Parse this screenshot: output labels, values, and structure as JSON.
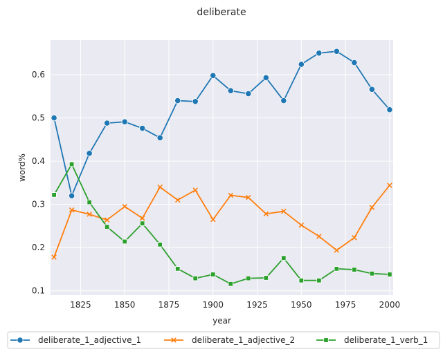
{
  "chart_data": {
    "type": "line",
    "title": "deliberate",
    "xlabel": "year",
    "ylabel": "word%",
    "xlim": [
      1808,
      2002
    ],
    "ylim": [
      0.09,
      0.68
    ],
    "xticks": [
      1825,
      1850,
      1875,
      1900,
      1925,
      1950,
      1975,
      2000
    ],
    "yticks": [
      0.1,
      0.2,
      0.3,
      0.4,
      0.5,
      0.6
    ],
    "ytick_labels": [
      "0.1",
      "0.2",
      "0.3",
      "0.4",
      "0.5",
      "0.6"
    ],
    "grid": true,
    "legend_position": "bottom",
    "x": [
      1810,
      1820,
      1830,
      1840,
      1850,
      1860,
      1870,
      1880,
      1890,
      1900,
      1910,
      1920,
      1930,
      1940,
      1950,
      1960,
      1970,
      1980,
      1990,
      2000
    ],
    "series": [
      {
        "name": "deliberate_1_adjective_1",
        "color": "#1f77b4",
        "marker": "circle",
        "values": [
          0.5,
          0.32,
          0.418,
          0.488,
          0.491,
          0.476,
          0.454,
          0.54,
          0.538,
          0.598,
          0.563,
          0.556,
          0.593,
          0.54,
          0.624,
          0.65,
          0.654,
          0.628,
          0.566,
          0.519
        ]
      },
      {
        "name": "deliberate_1_adjective_2",
        "color": "#ff7f0e",
        "marker": "x",
        "values": [
          0.178,
          0.287,
          0.277,
          0.264,
          0.295,
          0.268,
          0.34,
          0.31,
          0.333,
          0.265,
          0.321,
          0.316,
          0.278,
          0.284,
          0.252,
          0.226,
          0.194,
          0.223,
          0.293,
          0.344
        ]
      },
      {
        "name": "deliberate_1_verb_1",
        "color": "#2ca02c",
        "marker": "square",
        "values": [
          0.322,
          0.393,
          0.305,
          0.248,
          0.214,
          0.256,
          0.207,
          0.151,
          0.129,
          0.138,
          0.116,
          0.129,
          0.13,
          0.176,
          0.124,
          0.124,
          0.151,
          0.149,
          0.14,
          0.138
        ]
      }
    ]
  }
}
